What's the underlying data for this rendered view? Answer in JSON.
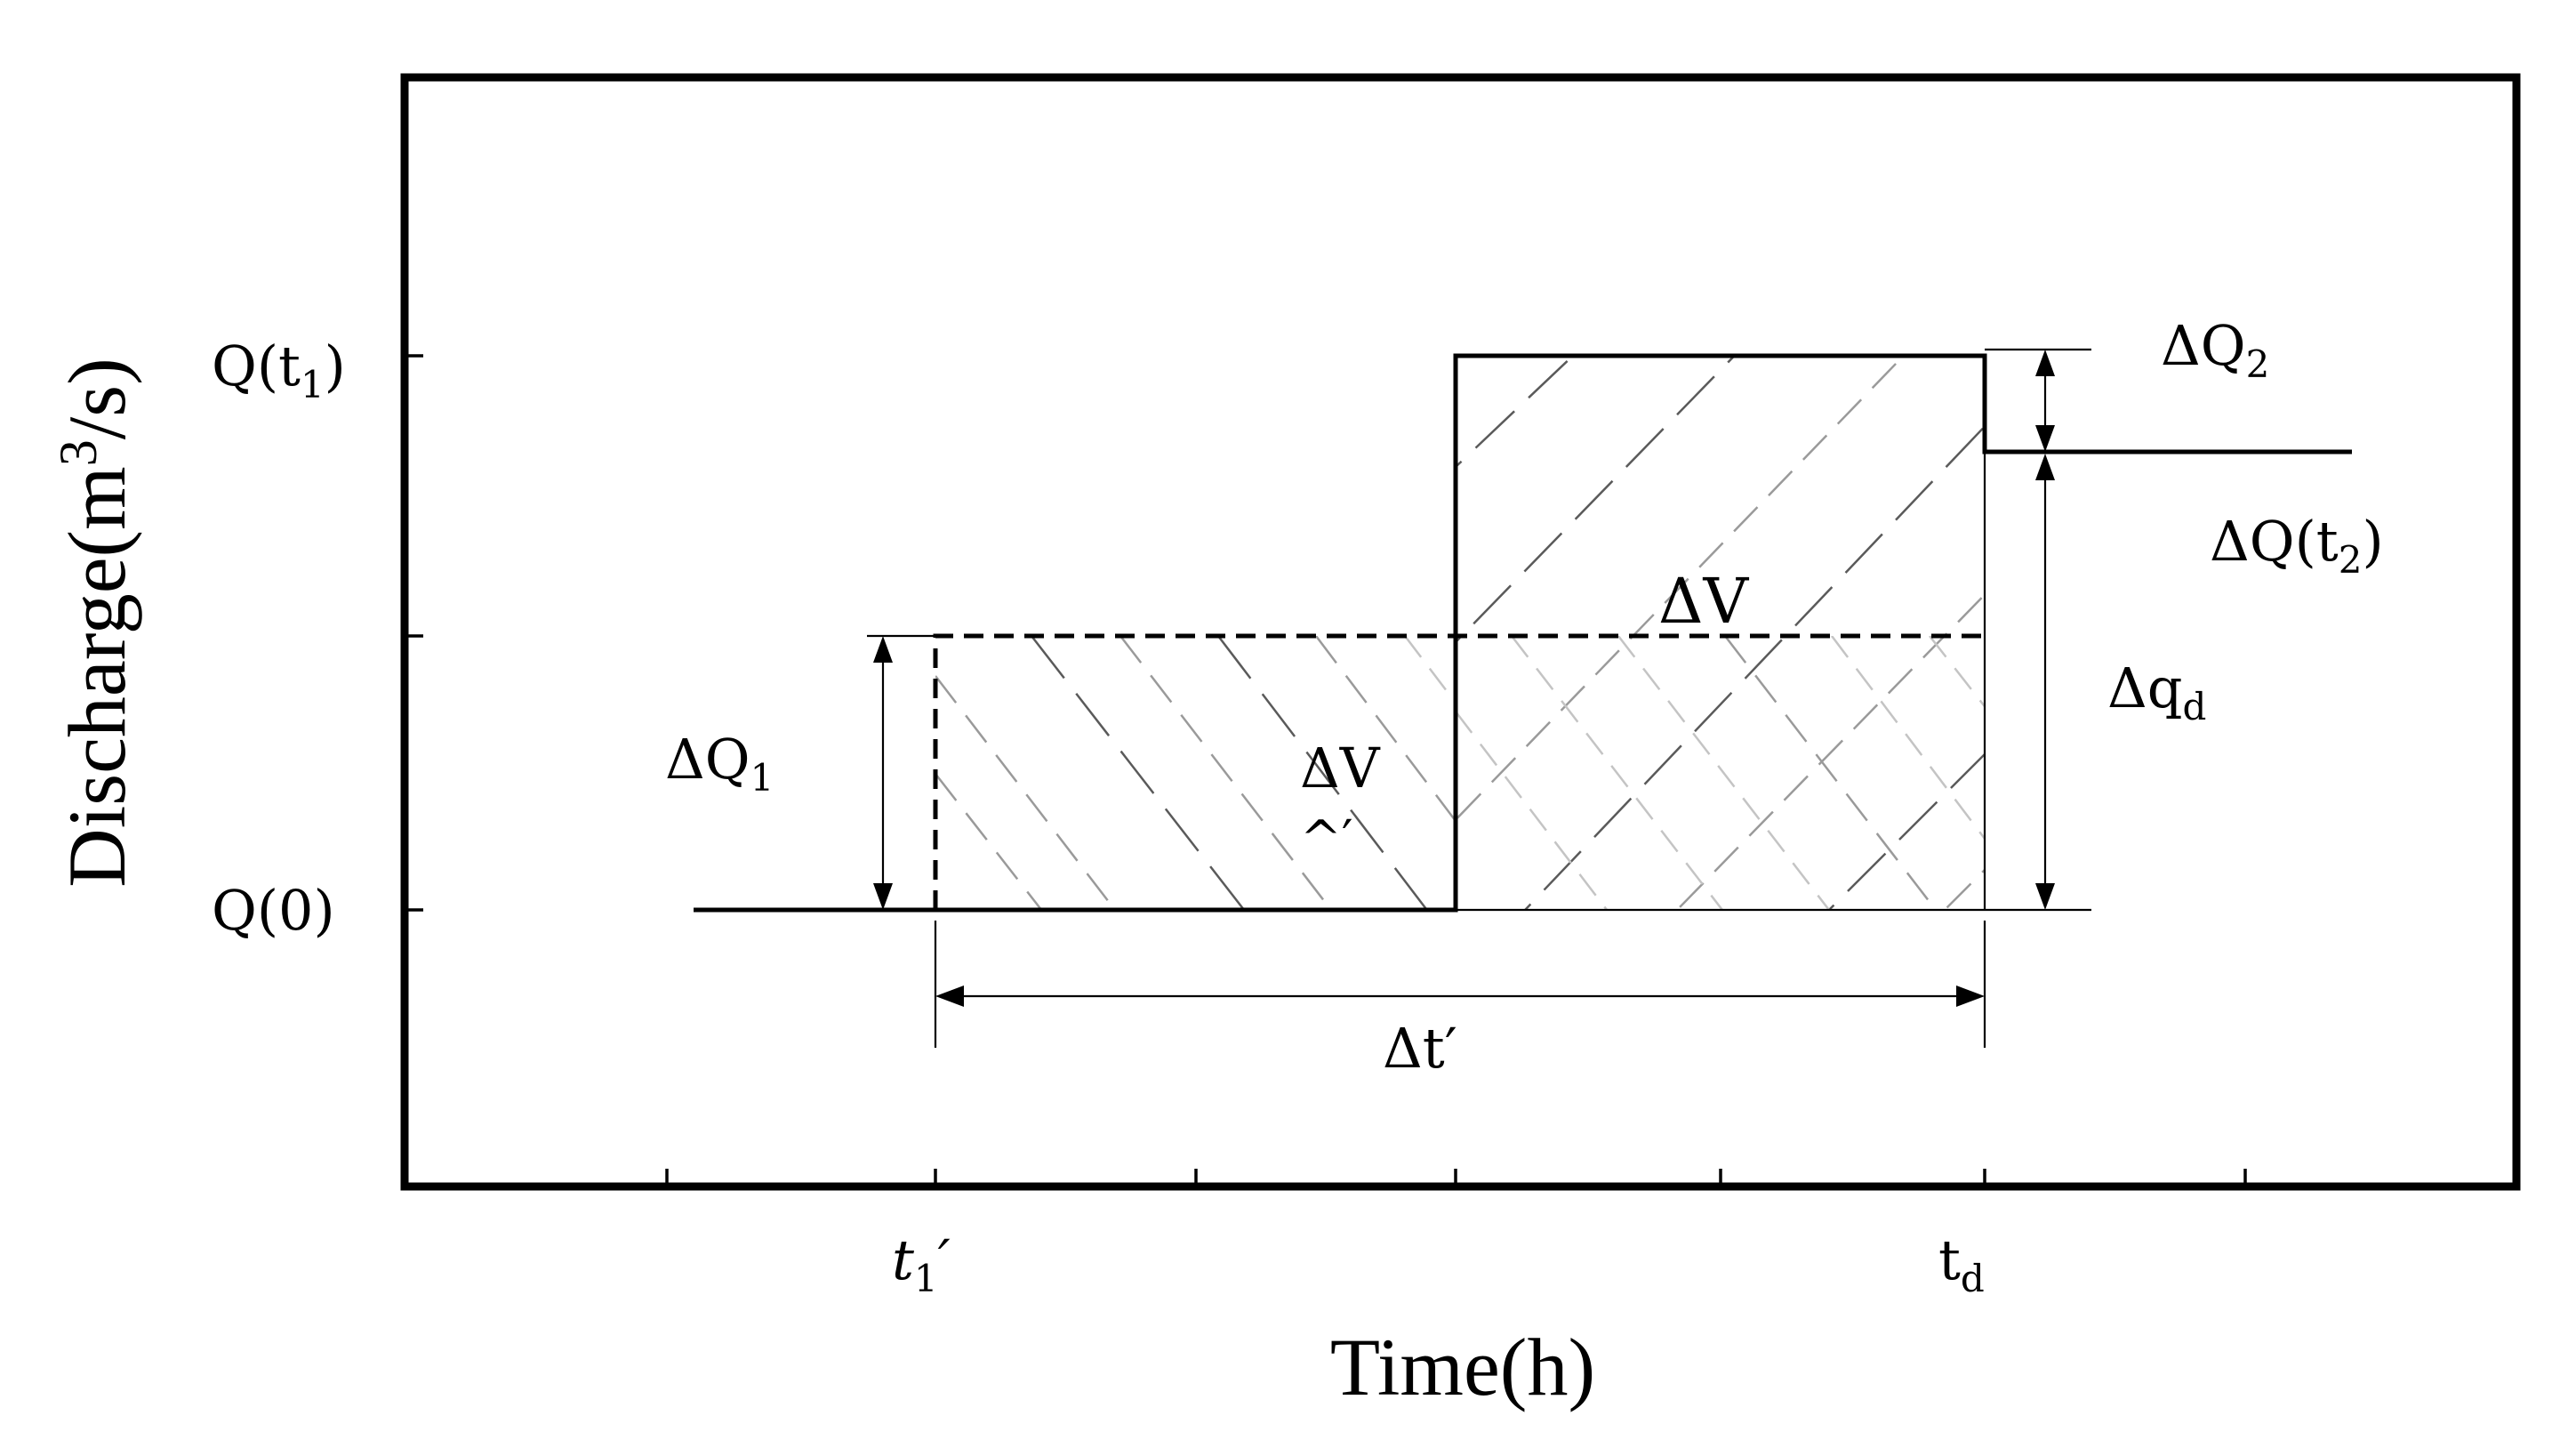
{
  "axes": {
    "y_title": "Discharge(m",
    "y_title_sup": "3",
    "y_title_end": "/s)",
    "x_title": "Time(h)"
  },
  "y_ticks": {
    "q_t1": {
      "main": "Q(t",
      "sub": "1",
      "end": ")"
    },
    "q_0": "Q(0)"
  },
  "x_ticks": {
    "t1_prime": {
      "main": "t",
      "sub": "1",
      "end": "′"
    },
    "td": {
      "main": "t",
      "sub": "d"
    }
  },
  "annotations": {
    "delta_q2": {
      "main": "ΔQ",
      "sub": "2"
    },
    "delta_q_t2": {
      "main": "ΔQ(t",
      "sub": "2",
      "end": ")"
    },
    "delta_v": "ΔV",
    "delta_qd": {
      "main": "Δq",
      "sub": "d"
    },
    "delta_q1": {
      "main": "ΔQ",
      "sub": "1"
    },
    "delta_v_hat": "ΔV",
    "delta_v_hat_mark": "^′",
    "delta_t_prime": "Δt′"
  }
}
